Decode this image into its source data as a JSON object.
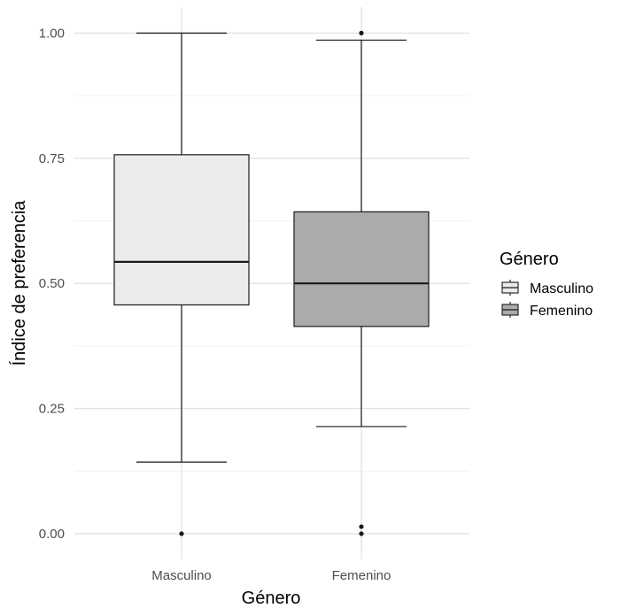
{
  "chart_data": {
    "type": "boxplot",
    "xlabel": "Género",
    "ylabel": "Índice de preferencia",
    "categories": [
      "Masculino",
      "Femenino"
    ],
    "ylim": [
      -0.05,
      1.05
    ],
    "yticks": [
      "0.00",
      "0.25",
      "0.50",
      "0.75",
      "1.00"
    ],
    "ytick_values": [
      0,
      0.25,
      0.5,
      0.75,
      1.0
    ],
    "grid": true,
    "legend_position": "right",
    "legend": {
      "title": "Género",
      "entries": [
        "Masculino",
        "Femenino"
      ]
    },
    "series": [
      {
        "name": "Masculino",
        "color": "#ebebeb",
        "whisker_low": 0.143,
        "q1": 0.457,
        "median": 0.543,
        "q3": 0.757,
        "whisker_high": 1.0,
        "outliers": [
          0.0
        ]
      },
      {
        "name": "Femenino",
        "color": "#ababab",
        "whisker_low": 0.214,
        "q1": 0.414,
        "median": 0.5,
        "q3": 0.643,
        "whisker_high": 0.986,
        "outliers": [
          1.0,
          0.014,
          0.0
        ]
      }
    ]
  }
}
